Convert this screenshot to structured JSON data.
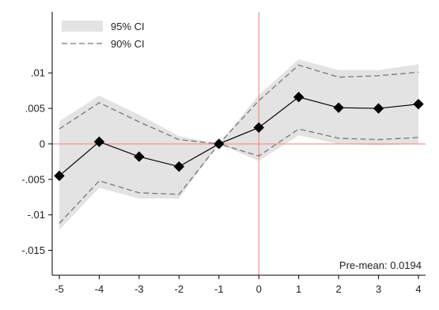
{
  "chart_data": {
    "type": "line",
    "title": "",
    "xlabel": "",
    "ylabel": "",
    "x": [
      -5,
      -4,
      -3,
      -2,
      -1,
      0,
      1,
      2,
      3,
      4
    ],
    "xlim": [
      -5,
      4
    ],
    "ylim": [
      -0.0185,
      0.0186
    ],
    "x_ticks": [
      -5,
      -4,
      -3,
      -2,
      -1,
      0,
      1,
      2,
      3,
      4
    ],
    "x_tick_labels": [
      "-5",
      "-4",
      "-3",
      "-2",
      "-1",
      "0",
      "1",
      "2",
      "3",
      "4"
    ],
    "y_ticks": [
      -0.015,
      -0.01,
      -0.005,
      0,
      0.005,
      0.01
    ],
    "y_tick_labels": [
      "-.015",
      "-.01",
      "-.005",
      "0",
      ".005",
      ".01"
    ],
    "grid": false,
    "legend_position": "top-left",
    "legend": [
      {
        "label": "95% CI",
        "kind": "band"
      },
      {
        "label": "90% CI",
        "kind": "dashed-line"
      }
    ],
    "series": [
      {
        "name": "",
        "kind": "point-estimate",
        "values": [
          -0.0045,
          0.0003,
          -0.0018,
          -0.0032,
          0.0,
          0.0023,
          0.0066,
          0.0051,
          0.005,
          0.0056
        ]
      }
    ],
    "ci95": {
      "name": "95% CI",
      "lower": [
        -0.0121,
        -0.0062,
        -0.0077,
        -0.0077,
        0.0,
        -0.0024,
        0.0012,
        0.0,
        -0.0002,
        0.0
      ],
      "upper": [
        0.0032,
        0.0068,
        0.0041,
        0.0011,
        0.0,
        0.0069,
        0.0119,
        0.0104,
        0.0104,
        0.0112
      ]
    },
    "ci90": {
      "name": "90% CI",
      "lower": [
        -0.0112,
        -0.0052,
        -0.0069,
        -0.0071,
        0.0,
        -0.0017,
        0.0021,
        0.0008,
        0.0006,
        0.0009
      ],
      "upper": [
        0.0021,
        0.0058,
        0.0031,
        0.0006,
        0.0,
        0.0061,
        0.0111,
        0.0094,
        0.0096,
        0.0101
      ]
    },
    "reference_lines": {
      "x": 0,
      "y": 0,
      "color": "#f08080"
    },
    "annotation": "Pre-mean: 0.0194",
    "annotation_position": "bottom-right",
    "colors": {
      "band": "#e3e3e3",
      "ci90_line": "#777777",
      "point_line": "#000000",
      "marker": "#000000",
      "axis": "#000000",
      "reference": "#f08080"
    }
  }
}
